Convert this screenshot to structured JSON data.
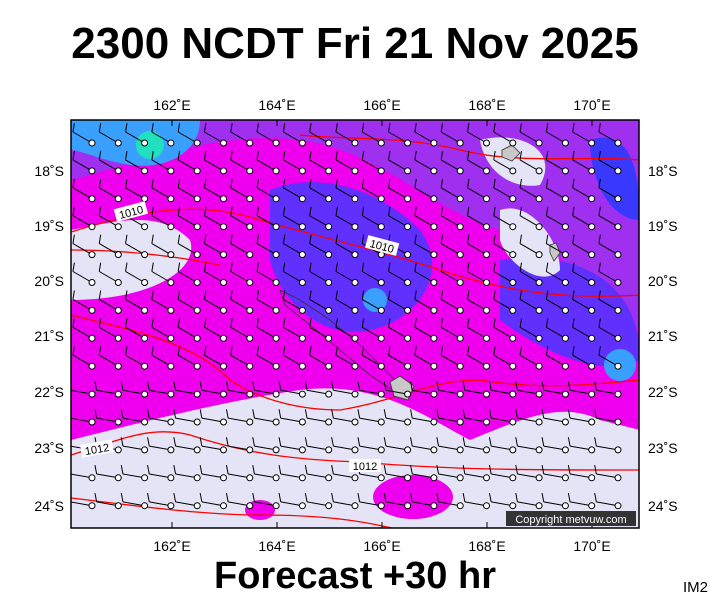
{
  "header": {
    "title": "2300 NCDT Fri 21 Nov 2025"
  },
  "map": {
    "lon_labels": [
      "162˚E",
      "164˚E",
      "166˚E",
      "168˚E",
      "170˚E"
    ],
    "lat_labels": [
      "18˚S",
      "19˚S",
      "20˚S",
      "21˚S",
      "22˚S",
      "23˚S",
      "24˚S"
    ],
    "isobar_labels": [
      "1010",
      "1010",
      "1012",
      "1012"
    ],
    "copyright": "Copyright metvuw.com"
  },
  "footer": {
    "forecast": "Forecast +30 hr",
    "code": "IM2"
  }
}
